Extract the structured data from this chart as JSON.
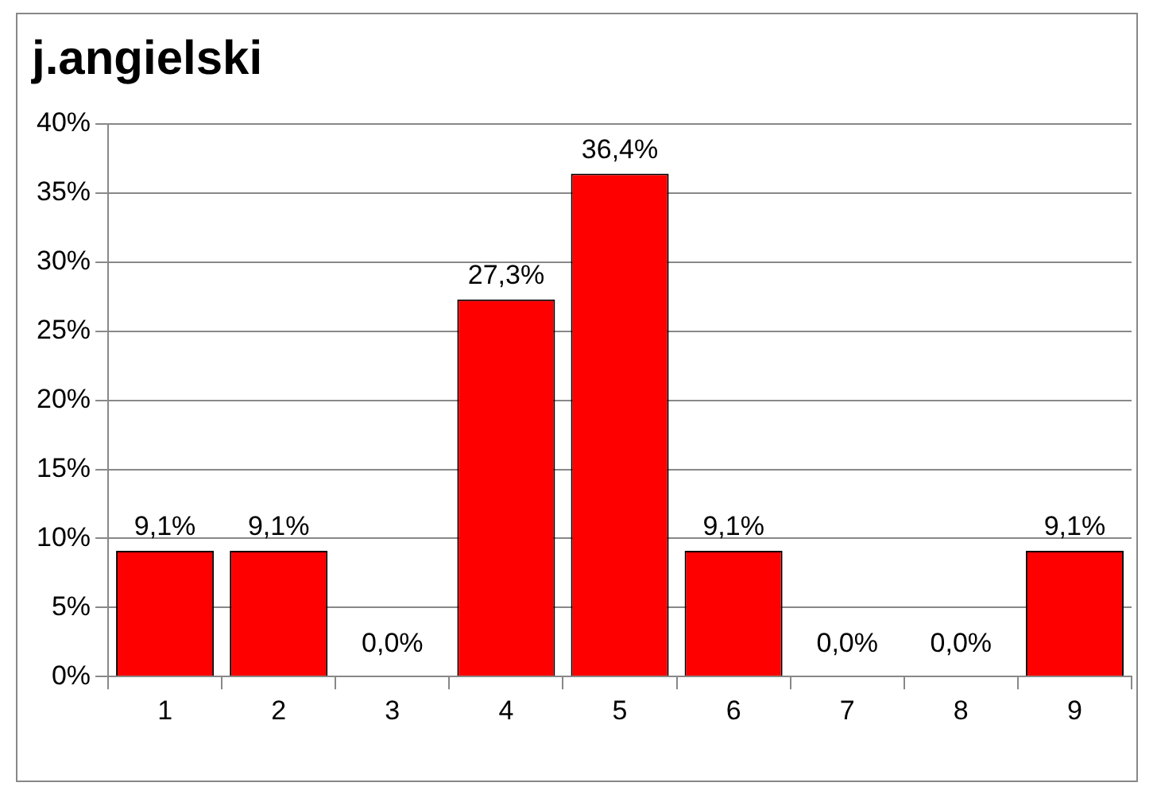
{
  "chart_data": {
    "type": "bar",
    "title": "j.angielski",
    "categories": [
      "1",
      "2",
      "3",
      "4",
      "5",
      "6",
      "7",
      "8",
      "9"
    ],
    "values": [
      9.1,
      9.1,
      0,
      27.3,
      36.4,
      9.1,
      0,
      0,
      9.1
    ],
    "value_labels": [
      "9,1%",
      "9,1%",
      "0,0%",
      "27,3%",
      "36,4%",
      "9,1%",
      "0,0%",
      "0,0%",
      "9,1%"
    ],
    "color": "#ff0000",
    "ylim": [
      0,
      40
    ],
    "yticks": [
      {
        "value": 0,
        "label": "0%"
      },
      {
        "value": 5,
        "label": "5%"
      },
      {
        "value": 10,
        "label": "10%"
      },
      {
        "value": 15,
        "label": "15%"
      },
      {
        "value": 20,
        "label": "20%"
      },
      {
        "value": 25,
        "label": "25%"
      },
      {
        "value": 30,
        "label": "30%"
      },
      {
        "value": 35,
        "label": "35%"
      },
      {
        "value": 40,
        "label": "40%"
      }
    ],
    "grid": "y",
    "legend": false
  }
}
